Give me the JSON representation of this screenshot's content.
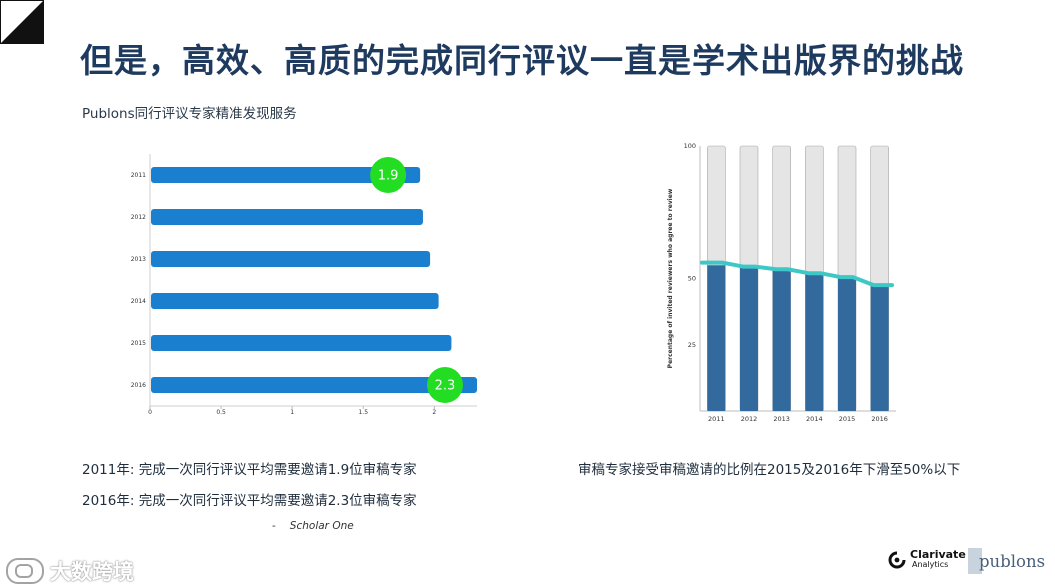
{
  "title": "但是，高效、高质的完成同行评议一直是学术出版界的挑战",
  "subtitle": "Publons同行评议专家精准发现服务",
  "chart_data": [
    {
      "type": "bar",
      "orientation": "horizontal",
      "categories": [
        "2011",
        "2012",
        "2013",
        "2014",
        "2015",
        "2016"
      ],
      "values": [
        1.9,
        1.92,
        1.97,
        2.03,
        2.12,
        2.3
      ],
      "xlim": [
        0,
        2.3
      ],
      "xticks": [
        "0",
        "0.5",
        "1",
        "1.5",
        "2"
      ],
      "annotations": [
        {
          "category": "2011",
          "label": "1.9"
        },
        {
          "category": "2016",
          "label": "2.3"
        }
      ],
      "bar_color": "#1b7fd0",
      "badge_color": "#22dd22"
    },
    {
      "type": "bar",
      "stacked": true,
      "categories": [
        "2011",
        "2012",
        "2013",
        "2014",
        "2015",
        "2016"
      ],
      "values": [
        55,
        54,
        53,
        52,
        50,
        47
      ],
      "total": 100,
      "ylim": [
        0,
        100
      ],
      "yticks": [
        "25",
        "50",
        "100"
      ],
      "ylabel": "Percentage of invited reviewers who agree to review",
      "line": [
        56,
        54.5,
        53.5,
        52,
        50.5,
        47.5
      ],
      "bar_color": "#336a9e",
      "remainder_color": "#e5e5e5",
      "line_color": "#3ec7c7"
    }
  ],
  "notes": {
    "left_1": "2011年: 完成一次同行评议平均需要邀请1.9位审稿专家",
    "left_2": "2016年: 完成一次同行评议平均需要邀请2.3位审稿专家",
    "right": "审稿专家接受审稿邀请的比例在2015及2016年下滑至50%以下"
  },
  "source": {
    "dash": "-",
    "label": "Scholar One"
  },
  "logos": {
    "watermark": "大数跨境",
    "clarivate_name": "Clarivate",
    "clarivate_sub": "Analytics",
    "publons": "publons"
  }
}
